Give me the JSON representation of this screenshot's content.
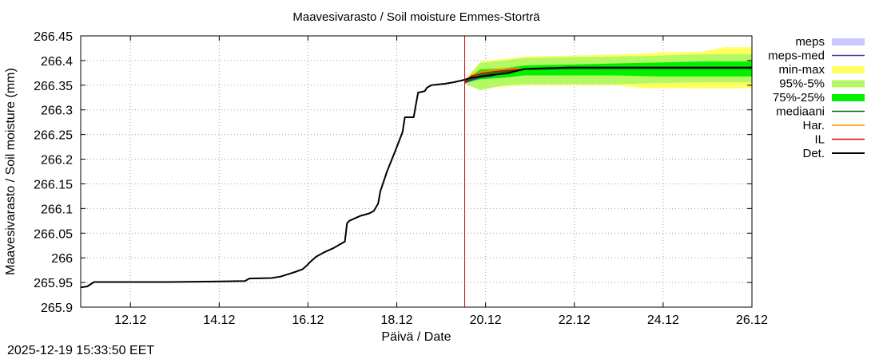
{
  "chart_data": {
    "type": "line",
    "title": "Maavesivarasto / Soil moisture   Emmes-Storträ",
    "xlabel": "Päivä / Date",
    "ylabel": "Maavesivarasto / Soil moisture (mm)",
    "xlim": [
      11.0,
      26.12
    ],
    "ylim": [
      265.9,
      266.45
    ],
    "x_ticks": [
      12.12,
      14.12,
      16.12,
      18.12,
      20.12,
      22.12,
      24.12,
      26.12
    ],
    "x_tick_labels": [
      "12.12",
      "14.12",
      "16.12",
      "18.12",
      "20.12",
      "22.12",
      "24.12",
      "26.12"
    ],
    "y_ticks": [
      265.9,
      265.95,
      266.0,
      266.05,
      266.1,
      266.15,
      266.2,
      266.25,
      266.3,
      266.35,
      266.4,
      266.45
    ],
    "y_tick_labels": [
      "265.9",
      "265.95",
      "266",
      "266.05",
      "266.1",
      "266.15",
      "266.2",
      "266.25",
      "266.3",
      "266.35",
      "266.4",
      "266.45"
    ],
    "grid": true,
    "forecast_start": 19.65,
    "legend": [
      {
        "label": "meps",
        "color": "#c8c8ff",
        "style": "band"
      },
      {
        "label": "meps-med",
        "color": "#3a3aa8",
        "style": "line"
      },
      {
        "label": "min-max",
        "color": "#ffff60",
        "style": "band"
      },
      {
        "label": "95%-5%",
        "color": "#b4f864",
        "style": "band"
      },
      {
        "label": "75%-25%",
        "color": "#00f000",
        "style": "band"
      },
      {
        "label": "mediaani",
        "color": "#006400",
        "style": "line"
      },
      {
        "label": "Har.",
        "color": "#ff8c00",
        "style": "line"
      },
      {
        "label": "IL",
        "color": "#dd0000",
        "style": "line"
      },
      {
        "label": "Det.",
        "color": "#000000",
        "style": "line"
      }
    ],
    "series": [
      {
        "name": "Det.",
        "x": [
          11.0,
          11.15,
          11.3,
          12.0,
          13.0,
          14.0,
          14.7,
          14.8,
          15.3,
          15.5,
          15.75,
          15.85,
          16.0,
          16.1,
          16.15,
          16.3,
          16.5,
          16.7,
          16.95,
          17.0,
          17.05,
          17.3,
          17.5,
          17.6,
          17.7,
          17.75,
          17.9,
          18.1,
          18.25,
          18.3,
          18.5,
          18.55,
          18.6,
          18.7,
          18.75,
          18.8,
          18.9,
          19.2,
          19.4,
          19.6,
          19.8,
          20.2,
          20.6,
          21.0,
          22.0,
          23.0,
          24.0,
          25.0,
          26.12
        ],
        "y": [
          265.94,
          265.942,
          265.951,
          265.951,
          265.951,
          265.952,
          265.953,
          265.958,
          265.959,
          265.962,
          265.969,
          265.972,
          265.977,
          265.985,
          265.99,
          266.002,
          266.012,
          266.02,
          266.033,
          266.07,
          266.075,
          266.085,
          266.09,
          266.095,
          266.11,
          266.135,
          266.175,
          266.22,
          266.255,
          266.285,
          266.285,
          266.31,
          266.335,
          266.337,
          266.338,
          266.345,
          266.35,
          266.353,
          266.356,
          266.36,
          266.365,
          266.37,
          266.374,
          266.383,
          266.386,
          266.386,
          266.386,
          266.386,
          266.386
        ]
      },
      {
        "name": "IL",
        "x": [
          19.65,
          19.8,
          20.0,
          20.3,
          20.6,
          20.9
        ],
        "y": [
          266.357,
          266.368,
          266.373,
          266.377,
          266.38,
          266.382
        ]
      },
      {
        "name": "Har.",
        "x": [
          19.65,
          19.8,
          20.0,
          20.3,
          20.6,
          20.9
        ],
        "y": [
          266.358,
          266.37,
          266.377,
          266.381,
          266.383,
          266.384
        ]
      },
      {
        "name": "meps-med",
        "x": [
          19.65,
          19.8,
          20.0,
          20.3
        ],
        "y": [
          266.355,
          266.36,
          266.366,
          266.369
        ]
      },
      {
        "name": "mediaani",
        "x": [
          19.65,
          20.0,
          20.5,
          21.0,
          22.0,
          23.0,
          24.0,
          25.0,
          26.12
        ],
        "y": [
          266.356,
          266.37,
          266.376,
          266.382,
          266.384,
          266.384,
          266.384,
          266.384,
          266.384
        ]
      }
    ],
    "bands": [
      {
        "name": "min-max",
        "x": [
          19.65,
          20.0,
          20.5,
          21.0,
          22.0,
          23.0,
          23.7,
          24.0,
          25.0,
          25.5,
          26.12
        ],
        "low": [
          266.353,
          266.345,
          266.347,
          266.35,
          266.35,
          266.35,
          266.344,
          266.344,
          266.344,
          266.344,
          266.344
        ],
        "high": [
          266.36,
          266.398,
          266.403,
          266.408,
          266.41,
          266.412,
          266.414,
          266.416,
          266.418,
          266.427,
          266.427
        ]
      },
      {
        "name": "95%-5%",
        "x": [
          19.65,
          20.0,
          20.5,
          21.0,
          22.0,
          23.0,
          24.0,
          25.0,
          26.12
        ],
        "low": [
          266.353,
          266.34,
          266.349,
          266.352,
          266.352,
          266.352,
          266.354,
          266.356,
          266.356
        ],
        "high": [
          266.36,
          266.395,
          266.4,
          266.405,
          266.407,
          266.408,
          266.41,
          266.413,
          266.413
        ]
      },
      {
        "name": "75%-25%",
        "x": [
          19.65,
          20.0,
          20.5,
          21.0,
          22.0,
          23.0,
          24.0,
          25.0,
          26.12
        ],
        "low": [
          266.355,
          266.362,
          266.365,
          266.37,
          266.37,
          266.37,
          266.368,
          266.368,
          266.368
        ],
        "high": [
          266.36,
          266.382,
          266.384,
          266.39,
          266.392,
          266.394,
          266.396,
          266.398,
          266.398
        ]
      }
    ]
  },
  "footer": {
    "timestamp": "2025-12-19 15:33:50 EET"
  }
}
